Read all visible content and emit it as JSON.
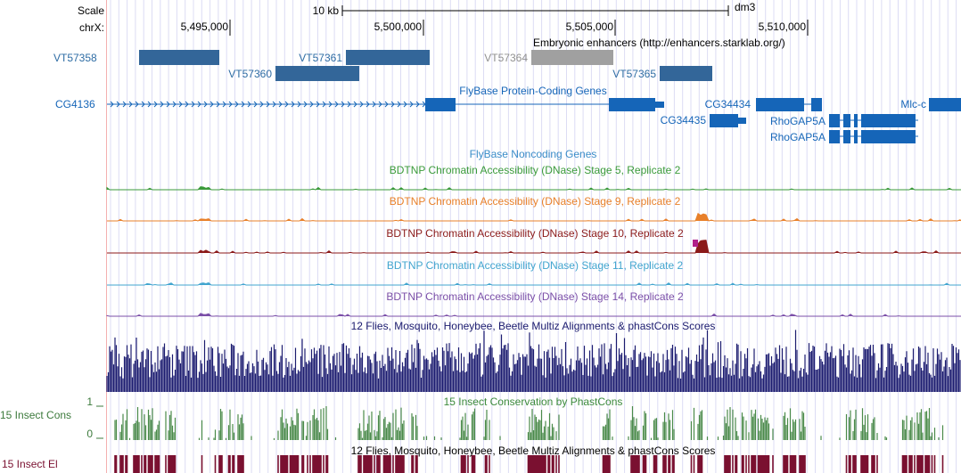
{
  "header": {
    "scale_label": "Scale",
    "chrom_label": "chrX:",
    "scale_bar": "10 kb",
    "assembly": "dm3",
    "positions": [
      "5,495,000",
      "5,500,000",
      "5,505,000",
      "5,510,000"
    ]
  },
  "enhancers": {
    "title": "Embryonic enhancers (http://enhancers.starklab.org/)",
    "items": [
      "VT57358",
      "VT57360",
      "VT57361",
      "VT57364",
      "VT57365"
    ]
  },
  "genes": {
    "title": "FlyBase Protein-Coding Genes",
    "items": [
      "CG4136",
      "CG34434",
      "CG34435",
      "RhoGAP5A",
      "RhoGAP5A",
      "Mlc-c"
    ]
  },
  "noncoding": {
    "title": "FlyBase Noncoding Genes"
  },
  "dnase": [
    "BDTNP Chromatin Accessibility (DNase) Stage 5, Replicate 2",
    "BDTNP Chromatin Accessibility (DNase) Stage 9, Replicate 2",
    "BDTNP Chromatin Accessibility (DNase) Stage 10, Replicate 2",
    "BDTNP Chromatin Accessibility (DNase) Stage 11, Replicate 2",
    "BDTNP Chromatin Accessibility (DNase) Stage 14, Replicate 2"
  ],
  "conservation": {
    "multiz_title": "12 Flies, Mosquito, Honeybee, Beetle Multiz Alignments & phastCons Scores",
    "phastcons_title": "15 Insect Conservation by PhastCons",
    "phastcons_label": "15 Insect Cons",
    "axis_max": "1",
    "axis_min": "0",
    "elements_title": "12 Flies, Mosquito, Honeybee, Beetle Multiz Alignments & phastCons Scores",
    "elements_label": "15 Insect El"
  }
}
